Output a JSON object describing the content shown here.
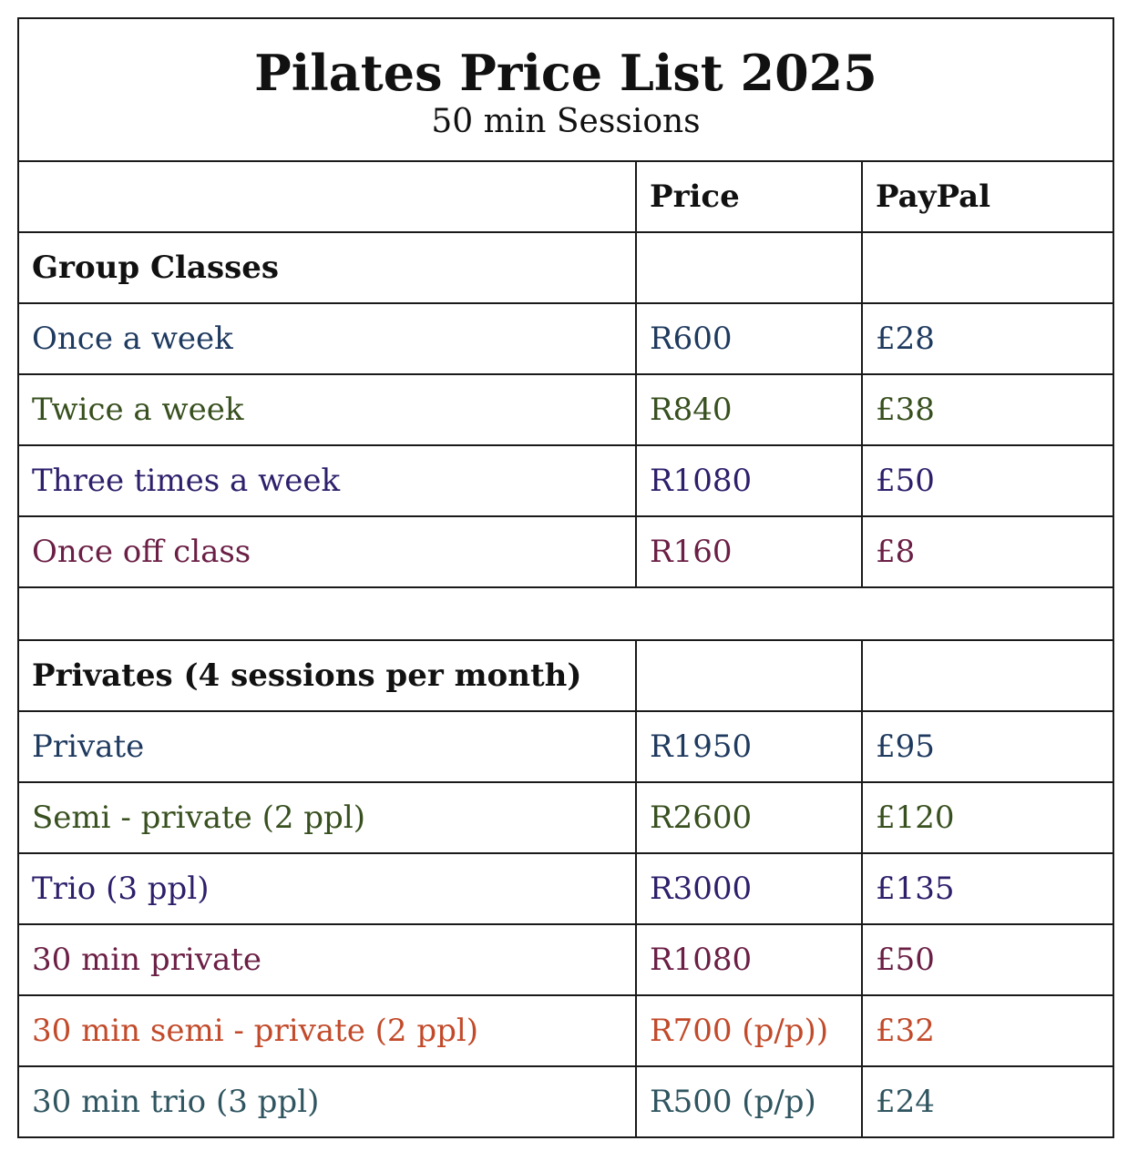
{
  "title": "Pilates Price List 2025",
  "subtitle": "50 min Sessions",
  "columns": [
    "",
    "Price",
    "PayPal"
  ],
  "sections": {
    "group": {
      "title": "Group Classes",
      "rows": [
        {
          "name": "Once a week",
          "price": "R600",
          "paypal": "£28",
          "color": "#1f3a5f"
        },
        {
          "name": "Twice a week",
          "price": "R840",
          "paypal": "£38",
          "color": "#38501f"
        },
        {
          "name": "Three times a week",
          "price": "R1080",
          "paypal": "£50",
          "color": "#2e1f6b"
        },
        {
          "name": "Once off class",
          "price": "R160",
          "paypal": "£8",
          "color": "#6b1f45"
        }
      ]
    },
    "privates": {
      "title": "Privates (4 sessions per month)",
      "rows": [
        {
          "name": "Private",
          "price": "R1950",
          "paypal": "£95",
          "color": "#1f3a5f"
        },
        {
          "name": "Semi - private (2 ppl)",
          "price": "R2600",
          "paypal": "£120",
          "color": "#38501f"
        },
        {
          "name": "Trio (3 ppl)",
          "price": "R3000",
          "paypal": "£135",
          "color": "#2e1f6b"
        },
        {
          "name": "30 min private",
          "price": "R1080",
          "paypal": "£50",
          "color": "#6b1f45"
        },
        {
          "name": "30 min semi - private (2 ppl)",
          "price": "R700 (p/p))",
          "paypal": "£32",
          "color": "#c24a2a"
        },
        {
          "name": "30 min trio (3 ppl)",
          "price": "R500 (p/p)",
          "paypal": "£24",
          "color": "#2f5560"
        }
      ]
    }
  }
}
